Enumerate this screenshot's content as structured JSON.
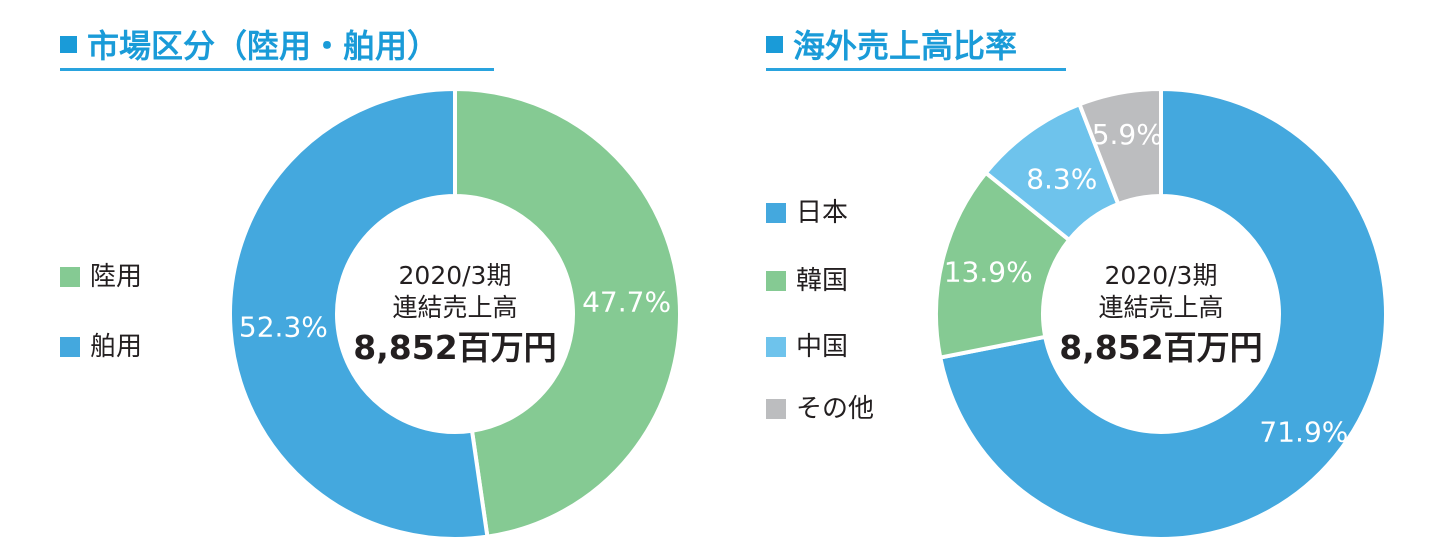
{
  "colors": {
    "accent": "#1a9bd8",
    "land": "#85ca93",
    "marine": "#44a8de",
    "japan": "#44a8de",
    "korea": "#85ca93",
    "china": "#6ec3ec",
    "other": "#bcbdbf",
    "text": "#231f20"
  },
  "chart_data": [
    {
      "type": "pie",
      "title": "市場区分（陸用・舶用）",
      "center_line1": "2020/3期",
      "center_line2": "連結売上高",
      "center_line3": "8,852百万円",
      "legend_position": "left",
      "slices": [
        {
          "name": "陸用",
          "value": 47.7,
          "label": "47.7%",
          "color": "#85ca93"
        },
        {
          "name": "舶用",
          "value": 52.3,
          "label": "52.3%",
          "color": "#44a8de"
        }
      ]
    },
    {
      "type": "pie",
      "title": "海外売上高比率",
      "center_line1": "2020/3期",
      "center_line2": "連結売上高",
      "center_line3": "8,852百万円",
      "legend_position": "left",
      "slices": [
        {
          "name": "日本",
          "value": 71.9,
          "label": "71.9%",
          "color": "#44a8de"
        },
        {
          "name": "韓国",
          "value": 13.9,
          "label": "13.9%",
          "color": "#85ca93"
        },
        {
          "name": "中国",
          "value": 8.3,
          "label": "8.3%",
          "color": "#6ec3ec"
        },
        {
          "name": "その他",
          "value": 5.9,
          "label": "5.9%",
          "color": "#bcbdbf"
        }
      ]
    }
  ]
}
